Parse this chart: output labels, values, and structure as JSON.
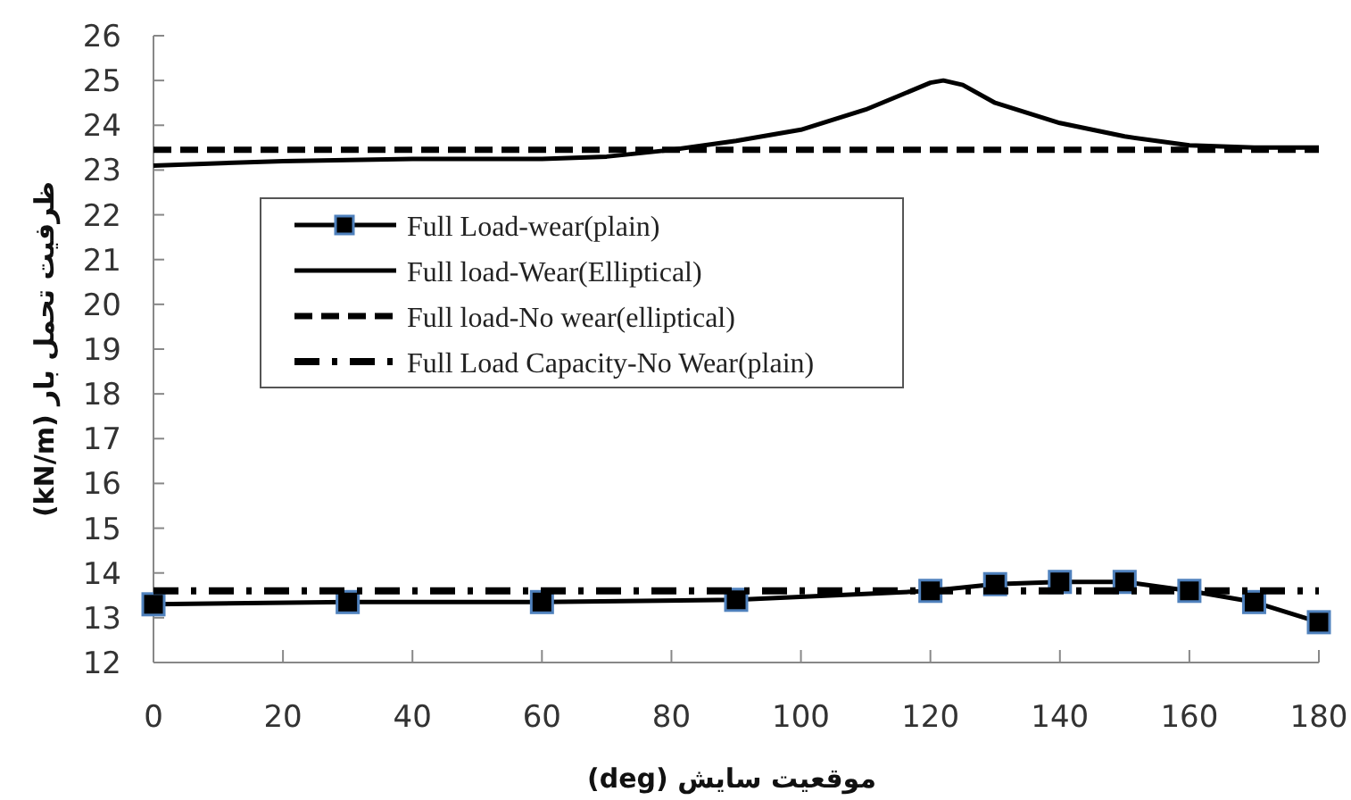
{
  "chart_data": {
    "type": "line",
    "xlabel": "موقعیت سایش (deg)",
    "ylabel": "ظرفیت تحمل بار (kN/m)",
    "xlim": [
      0,
      180
    ],
    "xticks": [
      0,
      20,
      40,
      60,
      80,
      100,
      120,
      140,
      160,
      180
    ],
    "ylim": [
      12,
      26
    ],
    "yticks": [
      12,
      13,
      14,
      15,
      16,
      17,
      18,
      19,
      20,
      21,
      22,
      23,
      24,
      25,
      26
    ],
    "grid": false,
    "legend": "left",
    "series": [
      {
        "name": "Full Load-wear(plain)",
        "color": "#000000",
        "marker": "square",
        "line_style": "solid",
        "x": [
          0,
          30,
          60,
          90,
          120,
          130,
          140,
          150,
          160,
          170,
          180
        ],
        "values": [
          13.3,
          13.35,
          13.35,
          13.4,
          13.6,
          13.75,
          13.8,
          13.8,
          13.6,
          13.35,
          12.9
        ]
      },
      {
        "name": "Full load-Wear(Elliptical)",
        "color": "#000000",
        "marker": "none",
        "line_style": "solid",
        "x": [
          0,
          20,
          40,
          60,
          70,
          80,
          90,
          100,
          110,
          115,
          120,
          122,
          125,
          130,
          140,
          150,
          160,
          170,
          180
        ],
        "values": [
          23.1,
          23.2,
          23.25,
          23.25,
          23.3,
          23.45,
          23.65,
          23.9,
          24.35,
          24.65,
          24.95,
          25.0,
          24.9,
          24.5,
          24.05,
          23.75,
          23.55,
          23.5,
          23.5
        ]
      },
      {
        "name": "Full load-No wear(elliptical)",
        "color": "#000000",
        "marker": "none",
        "line_style": "dashed",
        "x": [
          0,
          180
        ],
        "values": [
          23.45,
          23.45
        ]
      },
      {
        "name": "Full Load Capacity-No Wear(plain)",
        "color": "#000000",
        "marker": "none",
        "line_style": "dashdot",
        "x": [
          0,
          180
        ],
        "values": [
          13.6,
          13.6
        ]
      }
    ]
  }
}
